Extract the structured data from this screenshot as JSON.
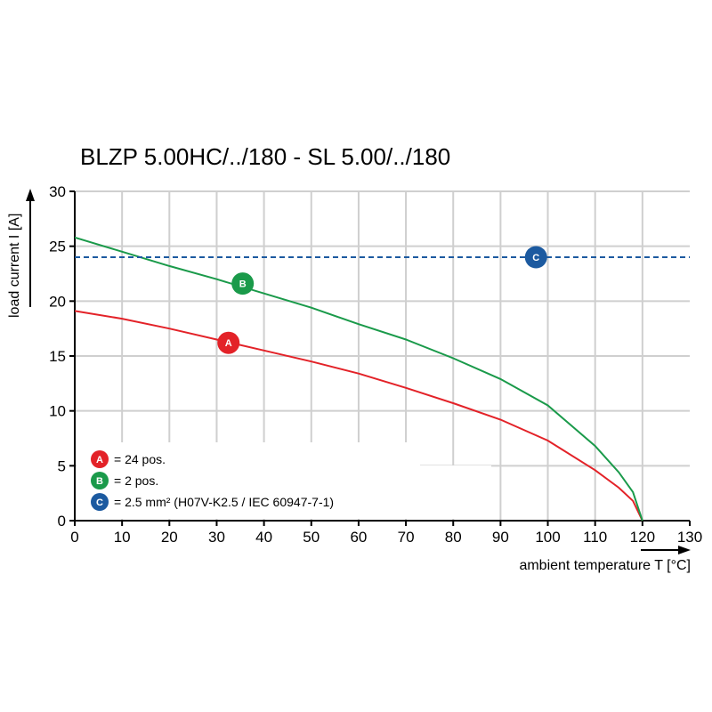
{
  "chart_data": {
    "type": "line",
    "title": "BLZP 5.00HC/../180 - SL 5.00/../180",
    "xlabel": "ambient temperature T [°C]",
    "ylabel": "load current I [A]",
    "xlim": [
      0,
      130
    ],
    "ylim": [
      0,
      30
    ],
    "xticks": [
      "0",
      "10",
      "20",
      "30",
      "40",
      "50",
      "60",
      "70",
      "80",
      "90",
      "100",
      "110",
      "120",
      "130"
    ],
    "yticks": [
      "0",
      "5",
      "10",
      "15",
      "20",
      "25",
      "30"
    ],
    "grid": true,
    "legend_position": "bottom-left",
    "series": [
      {
        "id": "A",
        "badge": "A",
        "legend": "= 24 pos.",
        "color": "#e32228",
        "style": "solid",
        "x": [
          0,
          10,
          20,
          30,
          40,
          50,
          60,
          70,
          80,
          90,
          100,
          110,
          115,
          118,
          120
        ],
        "y": [
          19.1,
          18.4,
          17.5,
          16.5,
          15.5,
          14.5,
          13.4,
          12.1,
          10.7,
          9.2,
          7.3,
          4.6,
          3.0,
          1.8,
          0
        ],
        "marker_x": 32.5,
        "marker_y": 16.2
      },
      {
        "id": "B",
        "badge": "B",
        "legend": "= 2 pos.",
        "color": "#1a9a4a",
        "style": "solid",
        "x": [
          0,
          10,
          20,
          30,
          40,
          50,
          60,
          70,
          80,
          90,
          100,
          110,
          115,
          118,
          120
        ],
        "y": [
          25.8,
          24.5,
          23.2,
          22.0,
          20.7,
          19.4,
          17.9,
          16.5,
          14.8,
          12.9,
          10.5,
          6.8,
          4.4,
          2.6,
          0
        ],
        "marker_x": 35.5,
        "marker_y": 21.6
      },
      {
        "id": "C",
        "badge": "C",
        "legend": "= 2.5 mm² (H07V-K2.5 / IEC 60947-7-1)",
        "color": "#1c5aa0",
        "style": "dashed",
        "x": [
          0,
          130
        ],
        "y": [
          24,
          24
        ],
        "marker_x": 97.5,
        "marker_y": 24
      }
    ]
  }
}
